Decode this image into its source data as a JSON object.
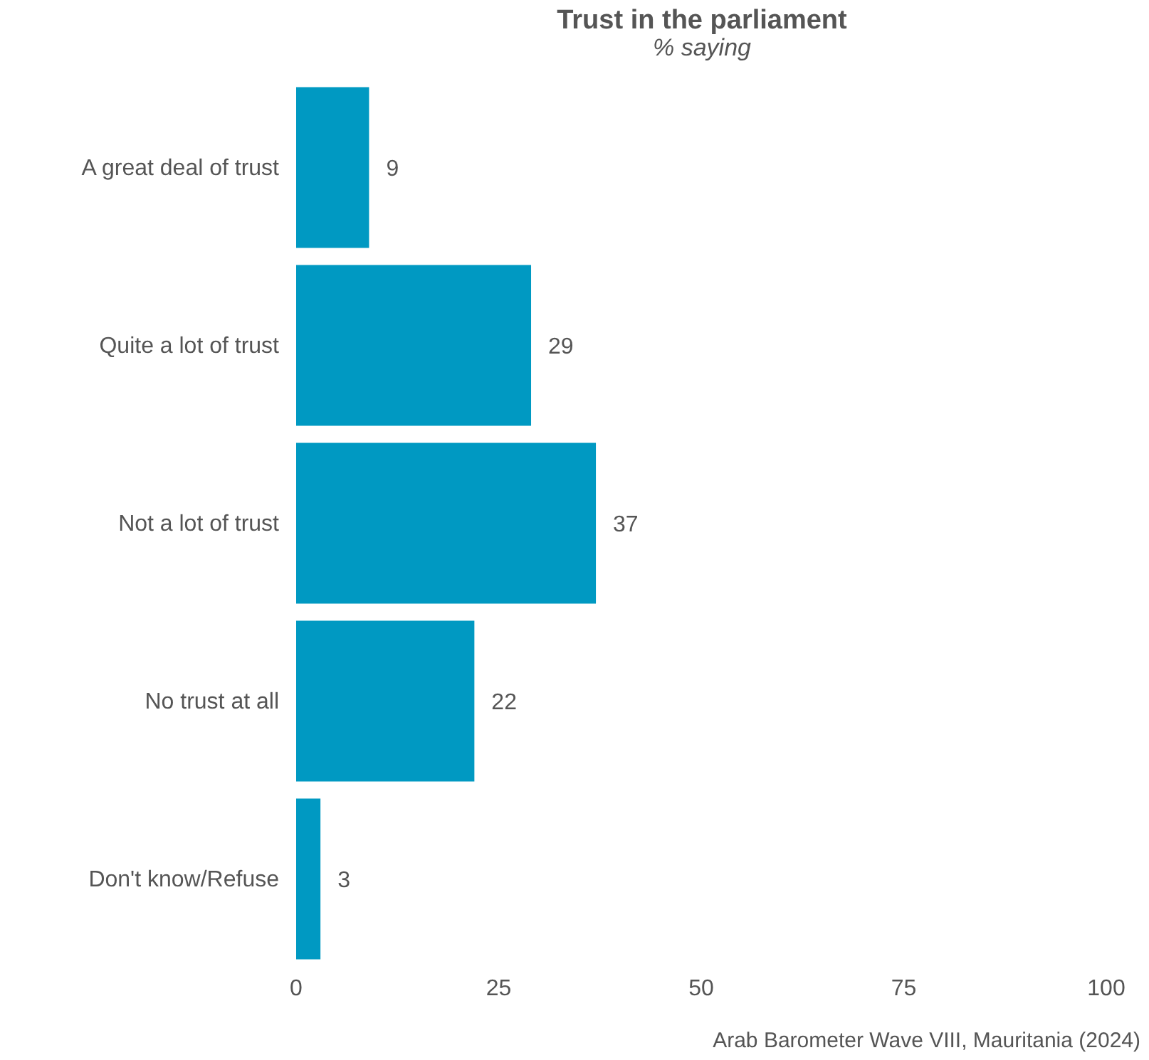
{
  "chart_data": {
    "type": "bar",
    "orientation": "horizontal",
    "title": "Trust in the parliament",
    "subtitle": "% saying",
    "categories": [
      "A great deal of trust",
      "Quite a lot of trust",
      "Not a lot of trust",
      "No trust at all",
      "Don't know/Refuse"
    ],
    "values": [
      9,
      29,
      37,
      22,
      3
    ],
    "color": "#0099c2",
    "xlim": [
      0,
      100
    ],
    "xticks": [
      0,
      25,
      50,
      75,
      100
    ],
    "grid": false,
    "legend": false,
    "data_labels": true,
    "annotations": [
      "Arab Barometer Wave VIII, Mauritania (2024)"
    ]
  }
}
